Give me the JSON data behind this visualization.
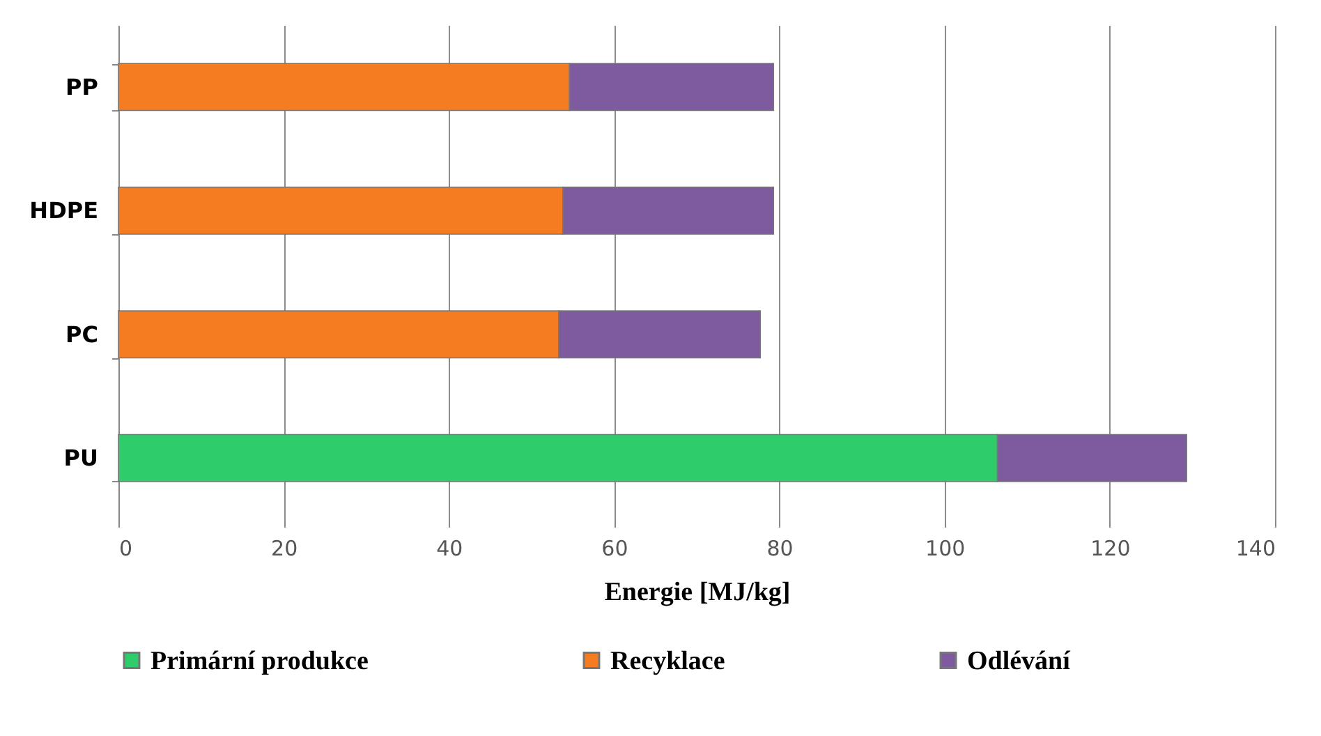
{
  "chart_data": {
    "type": "bar",
    "orientation": "horizontal",
    "stacked": true,
    "xlabel": "Energie [MJ/kg]",
    "categories": [
      "PP",
      "HDPE",
      "PC",
      "PU"
    ],
    "series": [
      {
        "name": "Primární produkce",
        "color": "#2ecc6a",
        "values": [
          null,
          null,
          null,
          106.4
        ]
      },
      {
        "name": "Recyklace",
        "color": "#f57c20",
        "values": [
          54.6,
          53.8,
          53.3,
          null
        ]
      },
      {
        "name": "Odlévání",
        "color": "#7d5b9e",
        "values": [
          24.7,
          25.5,
          24.4,
          22.9
        ]
      }
    ],
    "xlim": [
      0,
      140
    ],
    "xticks": [
      0,
      20,
      40,
      60,
      80,
      100,
      120,
      140
    ],
    "grid": "x",
    "legend": "bottom"
  }
}
